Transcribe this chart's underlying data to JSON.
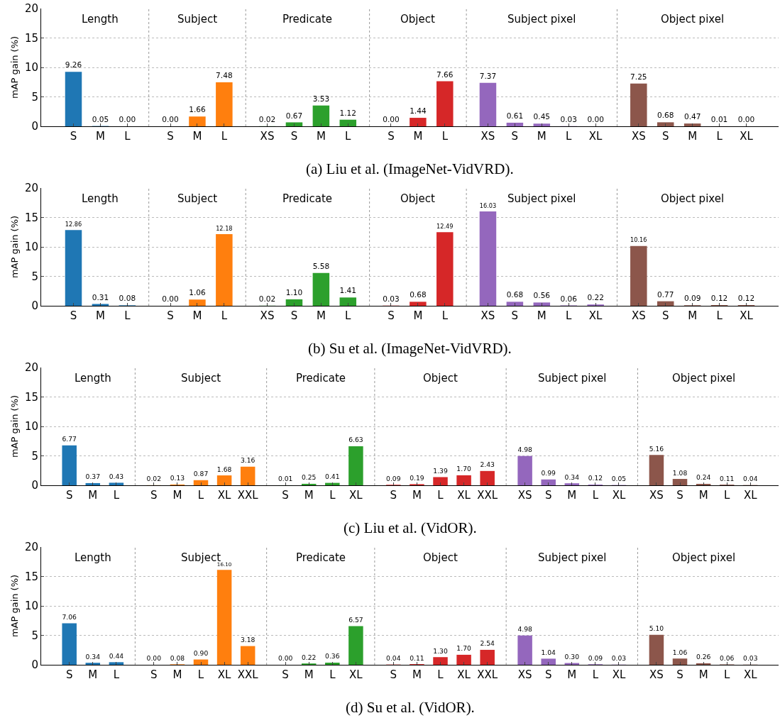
{
  "chart_data": [
    {
      "type": "bar",
      "ylabel": "mAP gain (%)",
      "ylim": [
        0,
        20
      ],
      "yticks": [
        0,
        5,
        10,
        15,
        20
      ],
      "grid": "y",
      "annotations": [
        "Length",
        "Subject",
        "Predicate",
        "Object",
        "Subject pixel",
        "Object pixel",
        "(a) Liu et al. (ImageNet-VidVRD)."
      ],
      "categories": [
        "S",
        "M",
        "L",
        "S",
        "M",
        "L",
        "XS",
        "S",
        "M",
        "L",
        "S",
        "M",
        "L",
        "XS",
        "S",
        "M",
        "L",
        "XL",
        "XS",
        "S",
        "M",
        "L",
        "XL"
      ],
      "series": [
        {
          "color": "#1f77b4",
          "values": [
            9.26,
            0.05,
            0.0,
            null,
            null,
            null,
            null,
            null,
            null,
            null,
            null,
            null,
            null,
            null,
            null,
            null,
            null,
            null,
            null,
            null,
            null,
            null,
            null
          ],
          "value_labels": [
            "9.26",
            "0.05",
            "0.00",
            null,
            null,
            null,
            null,
            null,
            null,
            null,
            null,
            null,
            null,
            null,
            null,
            null,
            null,
            null,
            null,
            null,
            null,
            null,
            null
          ]
        },
        {
          "color": "#ff7f0e",
          "values": [
            null,
            null,
            null,
            0.0,
            1.66,
            7.48,
            null,
            null,
            null,
            null,
            null,
            null,
            null,
            null,
            null,
            null,
            null,
            null,
            null,
            null,
            null,
            null,
            null
          ],
          "value_labels": [
            null,
            null,
            null,
            "0.00",
            "1.66",
            "7.48",
            null,
            null,
            null,
            null,
            null,
            null,
            null,
            null,
            null,
            null,
            null,
            null,
            null,
            null,
            null,
            null,
            null
          ]
        },
        {
          "color": "#2ca02c",
          "values": [
            null,
            null,
            null,
            null,
            null,
            null,
            0.02,
            0.67,
            3.53,
            1.12,
            null,
            null,
            null,
            null,
            null,
            null,
            null,
            null,
            null,
            null,
            null,
            null,
            null
          ],
          "value_labels": [
            null,
            null,
            null,
            null,
            null,
            null,
            "0.02",
            "0.67",
            "3.53",
            "1.12",
            null,
            null,
            null,
            null,
            null,
            null,
            null,
            null,
            null,
            null,
            null,
            null,
            null
          ]
        },
        {
          "color": "#d62728",
          "values": [
            null,
            null,
            null,
            null,
            null,
            null,
            null,
            null,
            null,
            null,
            0.0,
            1.44,
            7.66,
            null,
            null,
            null,
            null,
            null,
            null,
            null,
            null,
            null,
            null
          ],
          "value_labels": [
            null,
            null,
            null,
            null,
            null,
            null,
            null,
            null,
            null,
            null,
            "0.00",
            "1.44",
            "7.66",
            null,
            null,
            null,
            null,
            null,
            null,
            null,
            null,
            null,
            null
          ]
        },
        {
          "color": "#9467bd",
          "values": [
            null,
            null,
            null,
            null,
            null,
            null,
            null,
            null,
            null,
            null,
            null,
            null,
            null,
            7.37,
            0.61,
            0.45,
            0.03,
            0.0,
            null,
            null,
            null,
            null,
            null
          ],
          "value_labels": [
            null,
            null,
            null,
            null,
            null,
            null,
            null,
            null,
            null,
            null,
            null,
            null,
            null,
            "7.37",
            "0.61",
            "0.45",
            "0.03",
            "0.00",
            null,
            null,
            null,
            null,
            null
          ]
        },
        {
          "color": "#8c564b",
          "values": [
            null,
            null,
            null,
            null,
            null,
            null,
            null,
            null,
            null,
            null,
            null,
            null,
            null,
            null,
            null,
            null,
            null,
            null,
            7.25,
            0.68,
            0.47,
            0.01,
            0.0
          ],
          "value_labels": [
            null,
            null,
            null,
            null,
            null,
            null,
            null,
            null,
            null,
            null,
            null,
            null,
            null,
            null,
            null,
            null,
            null,
            null,
            "7.25",
            "0.68",
            "0.47",
            "0.01",
            "0.00"
          ]
        }
      ]
    },
    {
      "type": "bar",
      "ylabel": "mAP gain (%)",
      "ylim": [
        0,
        20
      ],
      "yticks": [
        0,
        5,
        10,
        15,
        20
      ],
      "grid": "y",
      "annotations": [
        "Length",
        "Subject",
        "Predicate",
        "Object",
        "Subject pixel",
        "Object pixel",
        "(b) Su et al. (ImageNet-VidVRD)."
      ],
      "categories": [
        "S",
        "M",
        "L",
        "S",
        "M",
        "L",
        "XS",
        "S",
        "M",
        "L",
        "S",
        "M",
        "L",
        "XS",
        "S",
        "M",
        "L",
        "XL",
        "XS",
        "S",
        "M",
        "L",
        "XL"
      ],
      "series": [
        {
          "color": "#1f77b4",
          "values": [
            12.86,
            0.31,
            0.08,
            null,
            null,
            null,
            null,
            null,
            null,
            null,
            null,
            null,
            null,
            null,
            null,
            null,
            null,
            null,
            null,
            null,
            null,
            null,
            null
          ],
          "value_labels": [
            "12.86",
            "0.31",
            "0.08",
            null,
            null,
            null,
            null,
            null,
            null,
            null,
            null,
            null,
            null,
            null,
            null,
            null,
            null,
            null,
            null,
            null,
            null,
            null,
            null
          ]
        },
        {
          "color": "#ff7f0e",
          "values": [
            null,
            null,
            null,
            0.0,
            1.06,
            12.18,
            null,
            null,
            null,
            null,
            null,
            null,
            null,
            null,
            null,
            null,
            null,
            null,
            null,
            null,
            null,
            null,
            null
          ],
          "value_labels": [
            null,
            null,
            null,
            "0.00",
            "1.06",
            "12.18",
            null,
            null,
            null,
            null,
            null,
            null,
            null,
            null,
            null,
            null,
            null,
            null,
            null,
            null,
            null,
            null,
            null
          ]
        },
        {
          "color": "#2ca02c",
          "values": [
            null,
            null,
            null,
            null,
            null,
            null,
            0.02,
            1.1,
            5.58,
            1.41,
            null,
            null,
            null,
            null,
            null,
            null,
            null,
            null,
            null,
            null,
            null,
            null,
            null
          ],
          "value_labels": [
            null,
            null,
            null,
            null,
            null,
            null,
            "0.02",
            "1.10",
            "5.58",
            "1.41",
            null,
            null,
            null,
            null,
            null,
            null,
            null,
            null,
            null,
            null,
            null,
            null,
            null
          ]
        },
        {
          "color": "#d62728",
          "values": [
            null,
            null,
            null,
            null,
            null,
            null,
            null,
            null,
            null,
            null,
            0.03,
            0.68,
            12.49,
            null,
            null,
            null,
            null,
            null,
            null,
            null,
            null,
            null,
            null
          ],
          "value_labels": [
            null,
            null,
            null,
            null,
            null,
            null,
            null,
            null,
            null,
            null,
            "0.03",
            "0.68",
            "12.49",
            null,
            null,
            null,
            null,
            null,
            null,
            null,
            null,
            null,
            null
          ]
        },
        {
          "color": "#9467bd",
          "values": [
            null,
            null,
            null,
            null,
            null,
            null,
            null,
            null,
            null,
            null,
            null,
            null,
            null,
            16.03,
            0.68,
            0.56,
            0.06,
            0.22,
            null,
            null,
            null,
            null,
            null
          ],
          "value_labels": [
            null,
            null,
            null,
            null,
            null,
            null,
            null,
            null,
            null,
            null,
            null,
            null,
            null,
            "16.03",
            "0.68",
            "0.56",
            "0.06",
            "0.22",
            null,
            null,
            null,
            null,
            null
          ]
        },
        {
          "color": "#8c564b",
          "values": [
            null,
            null,
            null,
            null,
            null,
            null,
            null,
            null,
            null,
            null,
            null,
            null,
            null,
            null,
            null,
            null,
            null,
            null,
            10.16,
            0.77,
            0.09,
            0.12,
            0.12
          ],
          "value_labels": [
            null,
            null,
            null,
            null,
            null,
            null,
            null,
            null,
            null,
            null,
            null,
            null,
            null,
            null,
            null,
            null,
            null,
            null,
            "10.16",
            "0.77",
            "0.09",
            "0.12",
            "0.12"
          ]
        }
      ]
    },
    {
      "type": "bar",
      "ylabel": "mAP gain (%)",
      "ylim": [
        0,
        20
      ],
      "yticks": [
        0,
        5,
        10,
        15,
        20
      ],
      "grid": "y",
      "annotations": [
        "Length",
        "Subject",
        "Predicate",
        "Object",
        "Subject pixel",
        "Object pixel",
        "(c) Liu et al. (VidOR)."
      ],
      "categories": [
        "S",
        "M",
        "L",
        "S",
        "M",
        "L",
        "XL",
        "XXL",
        "S",
        "M",
        "L",
        "XL",
        "S",
        "M",
        "L",
        "XL",
        "XXL",
        "XS",
        "S",
        "M",
        "L",
        "XL",
        "XS",
        "S",
        "M",
        "L",
        "XL"
      ],
      "series": [
        {
          "color": "#1f77b4",
          "values": [
            6.77,
            0.37,
            0.43,
            null,
            null,
            null,
            null,
            null,
            null,
            null,
            null,
            null,
            null,
            null,
            null,
            null,
            null,
            null,
            null,
            null,
            null,
            null,
            null,
            null,
            null,
            null,
            null
          ],
          "value_labels": [
            "6.77",
            "0.37",
            "0.43",
            null,
            null,
            null,
            null,
            null,
            null,
            null,
            null,
            null,
            null,
            null,
            null,
            null,
            null,
            null,
            null,
            null,
            null,
            null,
            null,
            null,
            null,
            null,
            null
          ]
        },
        {
          "color": "#ff7f0e",
          "values": [
            null,
            null,
            null,
            0.02,
            0.13,
            0.87,
            1.68,
            3.16,
            null,
            null,
            null,
            null,
            null,
            null,
            null,
            null,
            null,
            null,
            null,
            null,
            null,
            null,
            null,
            null,
            null,
            null,
            null
          ],
          "value_labels": [
            null,
            null,
            null,
            "0.02",
            "0.13",
            "0.87",
            "1.68",
            "3.16",
            null,
            null,
            null,
            null,
            null,
            null,
            null,
            null,
            null,
            null,
            null,
            null,
            null,
            null,
            null,
            null,
            null,
            null,
            null
          ]
        },
        {
          "color": "#2ca02c",
          "values": [
            null,
            null,
            null,
            null,
            null,
            null,
            null,
            null,
            0.01,
            0.25,
            0.41,
            6.63,
            null,
            null,
            null,
            null,
            null,
            null,
            null,
            null,
            null,
            null,
            null,
            null,
            null,
            null,
            null
          ],
          "value_labels": [
            null,
            null,
            null,
            null,
            null,
            null,
            null,
            null,
            "0.01",
            "0.25",
            "0.41",
            "6.63",
            null,
            null,
            null,
            null,
            null,
            null,
            null,
            null,
            null,
            null,
            null,
            null,
            null,
            null,
            null
          ]
        },
        {
          "color": "#d62728",
          "values": [
            null,
            null,
            null,
            null,
            null,
            null,
            null,
            null,
            null,
            null,
            null,
            null,
            0.09,
            0.19,
            1.39,
            1.7,
            2.43,
            null,
            null,
            null,
            null,
            null,
            null,
            null,
            null,
            null,
            null
          ],
          "value_labels": [
            null,
            null,
            null,
            null,
            null,
            null,
            null,
            null,
            null,
            null,
            null,
            null,
            "0.09",
            "0.19",
            "1.39",
            "1.70",
            "2.43",
            null,
            null,
            null,
            null,
            null,
            null,
            null,
            null,
            null,
            null
          ]
        },
        {
          "color": "#9467bd",
          "values": [
            null,
            null,
            null,
            null,
            null,
            null,
            null,
            null,
            null,
            null,
            null,
            null,
            null,
            null,
            null,
            null,
            null,
            4.98,
            0.99,
            0.34,
            0.12,
            0.05,
            null,
            null,
            null,
            null,
            null
          ],
          "value_labels": [
            null,
            null,
            null,
            null,
            null,
            null,
            null,
            null,
            null,
            null,
            null,
            null,
            null,
            null,
            null,
            null,
            null,
            "4.98",
            "0.99",
            "0.34",
            "0.12",
            "0.05",
            null,
            null,
            null,
            null,
            null
          ]
        },
        {
          "color": "#8c564b",
          "values": [
            null,
            null,
            null,
            null,
            null,
            null,
            null,
            null,
            null,
            null,
            null,
            null,
            null,
            null,
            null,
            null,
            null,
            null,
            null,
            null,
            null,
            null,
            5.16,
            1.08,
            0.24,
            0.11,
            0.04
          ],
          "value_labels": [
            null,
            null,
            null,
            null,
            null,
            null,
            null,
            null,
            null,
            null,
            null,
            null,
            null,
            null,
            null,
            null,
            null,
            null,
            null,
            null,
            null,
            null,
            "5.16",
            "1.08",
            "0.24",
            "0.11",
            "0.04"
          ]
        }
      ]
    },
    {
      "type": "bar",
      "ylabel": "mAP gain (%)",
      "ylim": [
        0,
        20
      ],
      "yticks": [
        0,
        5,
        10,
        15,
        20
      ],
      "grid": "y",
      "annotations": [
        "Length",
        "Subject",
        "Predicate",
        "Object",
        "Subject pixel",
        "Object pixel",
        "(d) Su et al. (VidOR)."
      ],
      "categories": [
        "S",
        "M",
        "L",
        "S",
        "M",
        "L",
        "XL",
        "XXL",
        "S",
        "M",
        "L",
        "XL",
        "S",
        "M",
        "L",
        "XL",
        "XXL",
        "XS",
        "S",
        "M",
        "L",
        "XL",
        "XS",
        "S",
        "M",
        "L",
        "XL"
      ],
      "series": [
        {
          "color": "#1f77b4",
          "values": [
            7.06,
            0.34,
            0.44,
            null,
            null,
            null,
            null,
            null,
            null,
            null,
            null,
            null,
            null,
            null,
            null,
            null,
            null,
            null,
            null,
            null,
            null,
            null,
            null,
            null,
            null,
            null,
            null
          ],
          "value_labels": [
            "7.06",
            "0.34",
            "0.44",
            null,
            null,
            null,
            null,
            null,
            null,
            null,
            null,
            null,
            null,
            null,
            null,
            null,
            null,
            null,
            null,
            null,
            null,
            null,
            null,
            null,
            null,
            null,
            null
          ]
        },
        {
          "color": "#ff7f0e",
          "values": [
            null,
            null,
            null,
            0.0,
            0.08,
            0.9,
            16.1,
            3.18,
            null,
            null,
            null,
            null,
            null,
            null,
            null,
            null,
            null,
            null,
            null,
            null,
            null,
            null,
            null,
            null,
            null,
            null,
            null
          ],
          "value_labels": [
            null,
            null,
            null,
            "0.00",
            "0.08",
            "0.90",
            "16.10",
            "3.18",
            null,
            null,
            null,
            null,
            null,
            null,
            null,
            null,
            null,
            null,
            null,
            null,
            null,
            null,
            null,
            null,
            null,
            null,
            null
          ]
        },
        {
          "color": "#2ca02c",
          "values": [
            null,
            null,
            null,
            null,
            null,
            null,
            null,
            null,
            0.0,
            0.22,
            0.36,
            6.57,
            null,
            null,
            null,
            null,
            null,
            null,
            null,
            null,
            null,
            null,
            null,
            null,
            null,
            null,
            null
          ],
          "value_labels": [
            null,
            null,
            null,
            null,
            null,
            null,
            null,
            null,
            "0.00",
            "0.22",
            "0.36",
            "6.57",
            null,
            null,
            null,
            null,
            null,
            null,
            null,
            null,
            null,
            null,
            null,
            null,
            null,
            null,
            null
          ]
        },
        {
          "color": "#d62728",
          "values": [
            null,
            null,
            null,
            null,
            null,
            null,
            null,
            null,
            null,
            null,
            null,
            null,
            0.04,
            0.11,
            1.3,
            1.7,
            2.54,
            null,
            null,
            null,
            null,
            null,
            null,
            null,
            null,
            null,
            null
          ],
          "value_labels": [
            null,
            null,
            null,
            null,
            null,
            null,
            null,
            null,
            null,
            null,
            null,
            null,
            "0.04",
            "0.11",
            "1.30",
            "1.70",
            "2.54",
            null,
            null,
            null,
            null,
            null,
            null,
            null,
            null,
            null,
            null
          ]
        },
        {
          "color": "#9467bd",
          "values": [
            null,
            null,
            null,
            null,
            null,
            null,
            null,
            null,
            null,
            null,
            null,
            null,
            null,
            null,
            null,
            null,
            null,
            4.98,
            1.04,
            0.3,
            0.09,
            0.03,
            null,
            null,
            null,
            null,
            null
          ],
          "value_labels": [
            null,
            null,
            null,
            null,
            null,
            null,
            null,
            null,
            null,
            null,
            null,
            null,
            null,
            null,
            null,
            null,
            null,
            "4.98",
            "1.04",
            "0.30",
            "0.09",
            "0.03",
            null,
            null,
            null,
            null,
            null
          ]
        },
        {
          "color": "#8c564b",
          "values": [
            null,
            null,
            null,
            null,
            null,
            null,
            null,
            null,
            null,
            null,
            null,
            null,
            null,
            null,
            null,
            null,
            null,
            null,
            null,
            null,
            null,
            null,
            5.1,
            1.06,
            0.26,
            0.06,
            0.03
          ],
          "value_labels": [
            null,
            null,
            null,
            null,
            null,
            null,
            null,
            null,
            null,
            null,
            null,
            null,
            null,
            null,
            null,
            null,
            null,
            null,
            null,
            null,
            null,
            null,
            "5.10",
            "1.06",
            "0.26",
            "0.06",
            "0.03"
          ]
        }
      ]
    }
  ]
}
